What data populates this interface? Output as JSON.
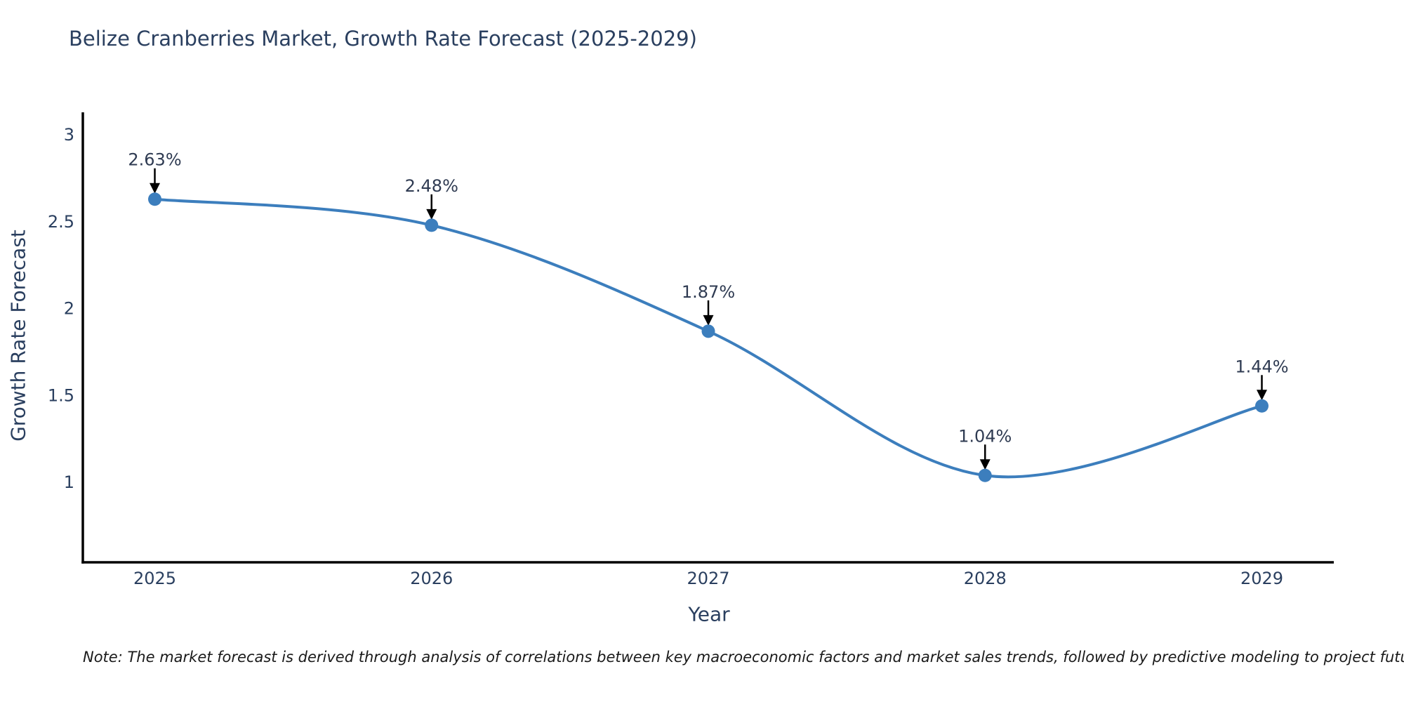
{
  "title": "Belize Cranberries Market, Growth Rate Forecast (2025-2029)",
  "footnote": "Note: The market forecast is derived through analysis of correlations between key macroeconomic factors and market sales trends, followed by predictive modeling to project future sales",
  "colors": {
    "title_text": "#2a3f5f",
    "tick_text": "#2a3f5f",
    "annotation_text": "#2f3b52",
    "line": "#3c7ebd",
    "marker": "#3c7ebd",
    "axis_line": "#000000",
    "arrow": "#000000",
    "note_text": "#1a1a1a",
    "background": "#ffffff"
  },
  "chart_data": {
    "type": "line",
    "title": "Belize Cranberries Market, Growth Rate Forecast (2025-2029)",
    "xlabel": "Year",
    "ylabel": "Growth Rate Forecast",
    "series": [
      {
        "name": "Growth Rate Forecast",
        "x": [
          2025,
          2026,
          2027,
          2028,
          2029
        ],
        "y": [
          2.63,
          2.48,
          1.87,
          1.04,
          1.44
        ],
        "point_labels": [
          "2.63%",
          "2.48%",
          "1.87%",
          "1.04%",
          "1.44%"
        ]
      }
    ],
    "line_shape": "spline",
    "markers": true,
    "annotation_arrows": true,
    "xticks": [
      "2025",
      "2026",
      "2027",
      "2028",
      "2029"
    ],
    "xtick_values": [
      2025,
      2026,
      2027,
      2028,
      2029
    ],
    "yticks": [
      "1",
      "1.5",
      "2",
      "2.5",
      "3"
    ],
    "ytick_values": [
      1,
      1.5,
      2,
      2.5,
      3
    ],
    "xlim": [
      2024.74,
      2029.26
    ],
    "ylim": [
      0.54,
      3.13
    ],
    "grid": false,
    "legend_position": "none"
  }
}
